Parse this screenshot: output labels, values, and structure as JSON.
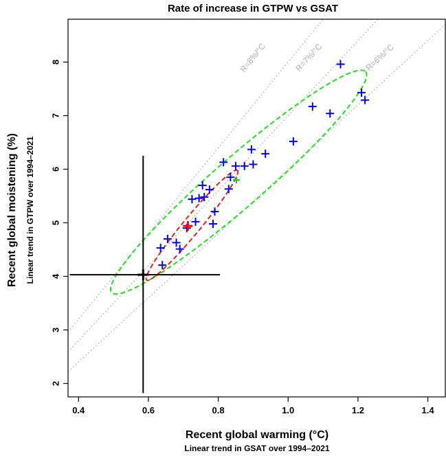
{
  "chart_data": {
    "type": "scatter",
    "title": "Rate of increase in GTPW vs GSAT",
    "xlabel": "Recent global warming (°C)",
    "xlabel_sub": "Linear trend in GSAT over 1994–2021",
    "ylabel": "Recent global moistening (%)",
    "ylabel_sub": "Linear trend in GTPW over 1994–2021",
    "xlim": [
      0.37,
      1.45
    ],
    "ylim": [
      1.75,
      8.8
    ],
    "x_ticks": [
      "0.4",
      "0.6",
      "0.8",
      "1.0",
      "1.2",
      "1.4"
    ],
    "y_ticks": [
      "2",
      "3",
      "4",
      "5",
      "6",
      "7",
      "8"
    ],
    "grid": false,
    "reference_lines": [
      {
        "label": "R=8%/°C",
        "slope": 8
      },
      {
        "label": "R=7%/°C",
        "slope": 7
      },
      {
        "label": "R=6%/°C",
        "slope": 6
      }
    ],
    "models": {
      "color": "#0000ee",
      "points": [
        [
          0.64,
          4.21
        ],
        [
          0.635,
          4.53
        ],
        [
          0.655,
          4.7
        ],
        [
          0.68,
          4.63
        ],
        [
          0.69,
          4.51
        ],
        [
          0.71,
          4.9
        ],
        [
          0.735,
          5.02
        ],
        [
          0.725,
          5.44
        ],
        [
          0.745,
          5.46
        ],
        [
          0.76,
          5.48
        ],
        [
          0.755,
          5.7
        ],
        [
          0.775,
          5.62
        ],
        [
          0.785,
          4.98
        ],
        [
          0.79,
          5.21
        ],
        [
          0.815,
          6.13
        ],
        [
          0.83,
          5.63
        ],
        [
          0.835,
          5.85
        ],
        [
          0.85,
          6.06
        ],
        [
          0.875,
          6.06
        ],
        [
          0.895,
          6.37
        ],
        [
          0.9,
          6.09
        ],
        [
          0.935,
          6.29
        ],
        [
          1.015,
          6.52
        ],
        [
          1.07,
          7.17
        ],
        [
          1.12,
          7.04
        ],
        [
          1.15,
          7.96
        ],
        [
          1.21,
          7.43
        ],
        [
          1.22,
          7.29
        ]
      ]
    },
    "model_mean": {
      "x": 0.713,
      "y": 4.94,
      "color": "#ee0000"
    },
    "green_marker": {
      "x": 0.852,
      "y": 5.8,
      "color": "#22cc22"
    },
    "observation": {
      "x": 0.585,
      "y": 4.03,
      "color": "#000000",
      "x_range": [
        0.375,
        0.805
      ],
      "y_range": [
        1.82,
        6.25
      ]
    },
    "ellipses": [
      {
        "color": "#22dd22",
        "from": [
          0.495,
          3.7
        ],
        "to": [
          1.222,
          7.82
        ],
        "halfwidth": 0.46
      },
      {
        "color": "#dd2222",
        "from": [
          0.595,
          3.93
        ],
        "to": [
          0.855,
          5.98
        ],
        "halfwidth": 0.16
      }
    ]
  }
}
